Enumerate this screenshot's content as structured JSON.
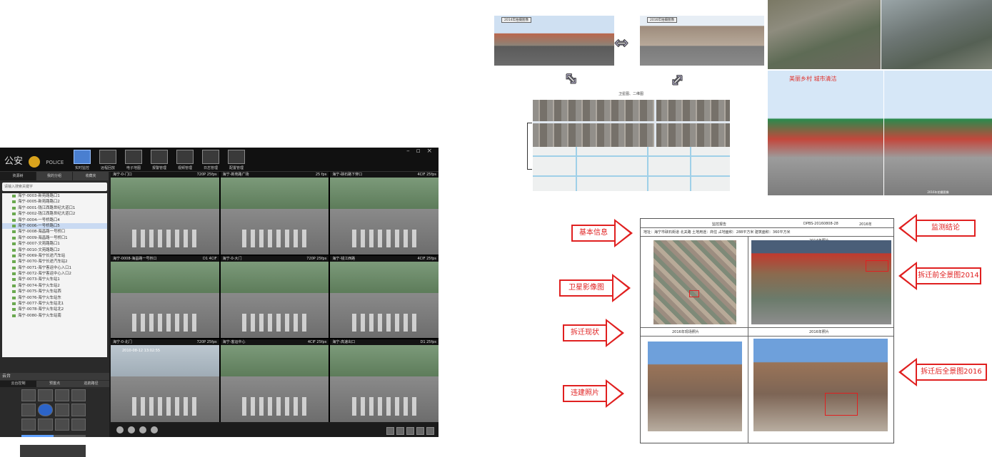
{
  "vms": {
    "brand": "公安",
    "brand_sub": "POLICE",
    "window_controls": "– ▫ ×",
    "toolbar": [
      {
        "label": "实时监控",
        "active": true
      },
      {
        "label": "远程回放"
      },
      {
        "label": "电子地图"
      },
      {
        "label": "报警管理"
      },
      {
        "label": "视频管理"
      },
      {
        "label": "日志管理"
      },
      {
        "label": "配置管理"
      }
    ],
    "sidebar_tabs": [
      "资源树",
      "我的分组",
      "收藏夹"
    ],
    "search_placeholder": "请输入搜索关键字",
    "cameras": [
      "海宁-0003-新苑路路口1",
      "海宁-0005-新苑路路口2",
      "海宁-0001-钱江西路世纪大道口1",
      "海宁-0002-钱江西路世纪大道口2",
      "海宁-0004-一号桥路口4",
      "海宁-0006-一号桥路口5",
      "海宁-0008-海昌路一号桥口",
      "海宁-0009-海昌路一号桥口1",
      "海宁-0007-文苑路路口1",
      "海宁-0010-文苑路路口2",
      "海宁-0069-海宁长途汽车站",
      "海宁-0070-海宁长途汽车站2",
      "海宁-0071-海宁客运中心入口1",
      "海宁-0072-海宁客运中心入口2",
      "海宁-0073-海宁火车站1",
      "海宁-0074-海宁火车站2",
      "海宁-0075-海宁火车站西",
      "海宁-0076-海宁火车站东",
      "海宁-0077-海宁火车站北1",
      "海宁-0078-海宁火车站北2",
      "海宁-0080-海宁火车站南"
    ],
    "ptz_title": "云台",
    "ptz_tabs": [
      "云台控制",
      "预置点",
      "巡航路径"
    ],
    "slider_value": 0.5,
    "video_cells": [
      {
        "name": "海宁-0-门口",
        "info": "720P 25fps",
        "time": ""
      },
      {
        "name": "海宁-新苑路广场",
        "info": "25 fps",
        "time": ""
      },
      {
        "name": "海宁-硖石路下穿口",
        "info": "4CIF 25fps",
        "time": ""
      },
      {
        "name": "海宁-0008-海昌路一号桥口",
        "info": "D1 4CIF",
        "time": ""
      },
      {
        "name": "海宁-0-大门",
        "info": "720P 25fps",
        "time": ""
      },
      {
        "name": "海宁-钱江西路",
        "info": "4CIF 25fps",
        "time": ""
      },
      {
        "name": "海宁-0-北门",
        "info": "720P 25fps",
        "time": "2010-08-12 13:02:55"
      },
      {
        "name": "海宁-客运中心",
        "info": "4CIF 25fps",
        "time": ""
      },
      {
        "name": "海宁-高速出口",
        "info": "D1 25fps",
        "time": ""
      }
    ]
  },
  "street": {
    "left_year": "2014年拍摄图像",
    "right_year": "2016年拍摄图像",
    "map_label": "卫星图、二维图"
  },
  "gallery": {
    "caption": "美丽乡村 城市清洁",
    "photo_label": "2016年拍摄图像"
  },
  "doc": {
    "header_title": "监控报告",
    "header_code": "DPBS-20160808-28",
    "header_right": "2016年",
    "meta_line": "地址：海宁市硖石街道 北关路 土地用途：商住 占地面积：288平方米 建筑面积：360平方米",
    "top_right_label": "2014年照片",
    "bottom_left_label": "2016年现场照片",
    "bottom_right_label": "2016年照片"
  },
  "callouts": {
    "left": [
      "基本信息",
      "卫星影像图",
      "拆迁现状",
      "违建照片"
    ],
    "right": [
      "监测结论",
      "拆迁前全景图2014",
      "拆迁后全景图2016"
    ]
  },
  "colors": {
    "accent_red": "#e02020",
    "arrow_fill": "#c9c3e6",
    "app_bg": "#1d1d1d",
    "active_tool": "#4a7fd0"
  }
}
